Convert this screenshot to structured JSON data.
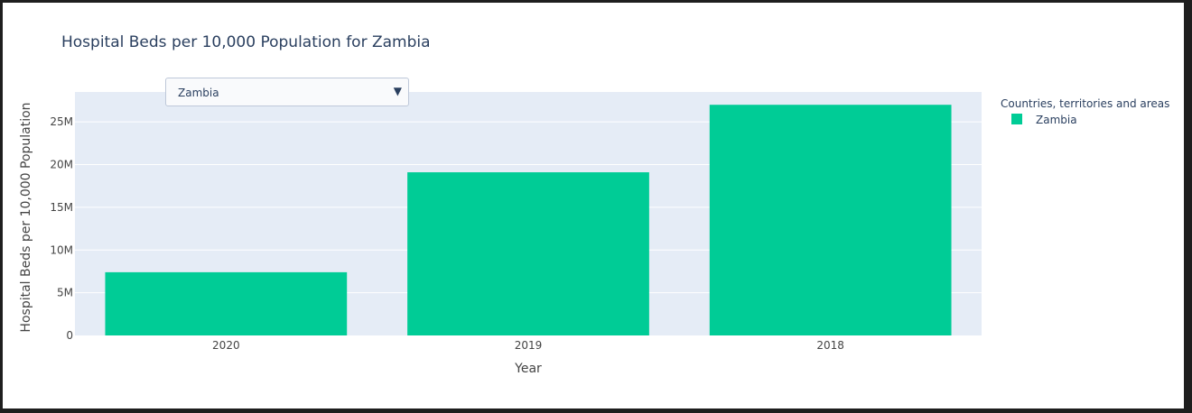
{
  "dropdown": {
    "selected": "Zambia",
    "caret": "▼"
  },
  "legend": {
    "title": "Countries, territories and areas"
  },
  "colors": {
    "bar": "#00cc96",
    "plot_bg": "#e5ecf6",
    "grid": "#ffffff",
    "text": "#2a3f5f"
  },
  "chart_data": {
    "type": "bar",
    "title": "Hospital Beds per 10,000 Population for Zambia",
    "xlabel": "Year",
    "ylabel": "Hospital Beds per 10,000 Population",
    "categories": [
      "2020",
      "2019",
      "2018"
    ],
    "series": [
      {
        "name": "Zambia",
        "values": [
          7400000,
          19100000,
          27000000
        ]
      }
    ],
    "ylim": [
      0,
      28500000
    ],
    "yticks": [
      {
        "value": 0,
        "label": "0"
      },
      {
        "value": 5000000,
        "label": "5M"
      },
      {
        "value": 10000000,
        "label": "10M"
      },
      {
        "value": 15000000,
        "label": "15M"
      },
      {
        "value": 20000000,
        "label": "20M"
      },
      {
        "value": 25000000,
        "label": "25M"
      }
    ],
    "grid": true,
    "legend_position": "top-right"
  }
}
